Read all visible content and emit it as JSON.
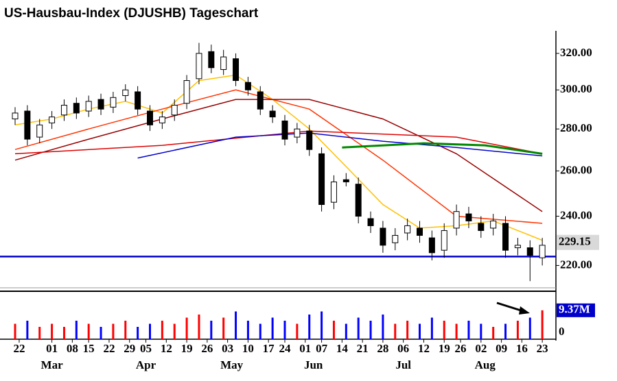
{
  "chart_data": {
    "type": "candlestick",
    "title": "US-Hausbau-Index (DJUSHB) Tageschart",
    "log_scale": true,
    "ylim": [
      212,
      333
    ],
    "yticks": [
      {
        "value": 220,
        "label": "220.00"
      },
      {
        "value": 240,
        "label": "240.00"
      },
      {
        "value": 260,
        "label": "260.00"
      },
      {
        "value": 280,
        "label": "280.00"
      },
      {
        "value": 300,
        "label": "300.00"
      },
      {
        "value": 320,
        "label": "320.00"
      }
    ],
    "xlim": [
      0,
      132
    ],
    "xticks": [
      {
        "value": 1,
        "label": "22"
      },
      {
        "value": 9,
        "label": "01"
      },
      {
        "value": 14,
        "label": "08"
      },
      {
        "value": 18,
        "label": "15"
      },
      {
        "value": 23,
        "label": "22"
      },
      {
        "value": 28,
        "label": "29"
      },
      {
        "value": 32,
        "label": "05"
      },
      {
        "value": 37,
        "label": "12"
      },
      {
        "value": 42,
        "label": "19"
      },
      {
        "value": 47,
        "label": "26"
      },
      {
        "value": 52,
        "label": "03"
      },
      {
        "value": 57,
        "label": "10"
      },
      {
        "value": 62,
        "label": "17"
      },
      {
        "value": 66,
        "label": "24"
      },
      {
        "value": 71,
        "label": "01"
      },
      {
        "value": 75,
        "label": "07"
      },
      {
        "value": 80,
        "label": "14"
      },
      {
        "value": 85,
        "label": "21"
      },
      {
        "value": 90,
        "label": "28"
      },
      {
        "value": 95,
        "label": "06"
      },
      {
        "value": 100,
        "label": "12"
      },
      {
        "value": 105,
        "label": "19"
      },
      {
        "value": 109,
        "label": "26"
      },
      {
        "value": 114,
        "label": "02"
      },
      {
        "value": 119,
        "label": "09"
      },
      {
        "value": 124,
        "label": "16"
      },
      {
        "value": 129,
        "label": "23"
      }
    ],
    "month_ticks": [
      {
        "value": 9,
        "label": "Mar"
      },
      {
        "value": 32,
        "label": "Apr"
      },
      {
        "value": 53,
        "label": "May"
      },
      {
        "value": 73,
        "label": "Jun"
      },
      {
        "value": 95,
        "label": "Jul"
      },
      {
        "value": 115,
        "label": "Aug"
      }
    ],
    "x": [
      0,
      3,
      6,
      9,
      12,
      15,
      18,
      21,
      24,
      27,
      30,
      33,
      36,
      39,
      42,
      45,
      48,
      51,
      54,
      57,
      60,
      63,
      66,
      69,
      72,
      75,
      78,
      81,
      84,
      87,
      90,
      93,
      96,
      99,
      102,
      105,
      108,
      111,
      114,
      117,
      120,
      123,
      126,
      129
    ],
    "open": [
      285,
      289,
      276,
      283,
      287,
      293,
      289,
      295,
      291,
      297,
      299,
      289,
      283,
      287,
      293,
      306,
      321,
      311,
      317,
      304,
      299,
      289,
      284,
      276,
      279,
      268,
      246,
      256,
      254,
      239,
      235,
      229,
      233,
      235,
      231,
      226,
      235,
      241,
      237,
      235,
      237,
      227,
      227,
      223
    ],
    "high": [
      291,
      292,
      285,
      289,
      295,
      296,
      297,
      298,
      299,
      303,
      302,
      292,
      289,
      295,
      308,
      326,
      325,
      322,
      320,
      307,
      302,
      292,
      287,
      283,
      282,
      271,
      258,
      259,
      257,
      242,
      238,
      235,
      239,
      238,
      234,
      237,
      245,
      244,
      240,
      241,
      240,
      231,
      230,
      231
    ],
    "low": [
      282,
      272,
      273,
      280,
      284,
      285,
      286,
      287,
      288,
      294,
      287,
      279,
      280,
      284,
      290,
      303,
      309,
      308,
      302,
      297,
      287,
      283,
      272,
      273,
      267,
      242,
      243,
      253,
      237,
      233,
      225,
      226,
      230,
      229,
      222,
      223,
      232,
      235,
      231,
      232,
      223,
      224,
      214,
      220
    ],
    "close": [
      288,
      275,
      282,
      286,
      292,
      288,
      294,
      290,
      296,
      300,
      290,
      282,
      286,
      292,
      305,
      320,
      312,
      318,
      305,
      300,
      290,
      286,
      275,
      280,
      270,
      245,
      255,
      255,
      240,
      236,
      228,
      232,
      236,
      232,
      225,
      234,
      242,
      238,
      234,
      238,
      226,
      228,
      224,
      228
    ],
    "up_color": "#ffffff",
    "down_color": "#000000",
    "wick_color": "#000000",
    "lines": [
      {
        "color": "#ffc000",
        "x": [
          0,
          9,
          18,
          27,
          36,
          45,
          54,
          63,
          72,
          81,
          90,
          99,
          108,
          117,
          126,
          129
        ],
        "values": [
          282,
          285,
          290,
          294,
          288,
          305,
          308,
          295,
          280,
          262,
          245,
          235,
          236,
          238,
          232,
          230
        ]
      },
      {
        "color": "#ff3300",
        "x": [
          0,
          18,
          36,
          54,
          72,
          90,
          108,
          129
        ],
        "values": [
          270,
          280,
          290,
          300,
          290,
          265,
          240,
          237
        ]
      },
      {
        "color": "#990000",
        "x": [
          0,
          18,
          36,
          54,
          72,
          90,
          108,
          129
        ],
        "values": [
          265,
          275,
          285,
          295,
          295,
          285,
          268,
          242
        ]
      },
      {
        "color": "#dd0000",
        "x": [
          0,
          36,
          72,
          108,
          129
        ],
        "values": [
          268,
          272,
          279,
          276,
          268
        ]
      },
      {
        "color": "#0000cc",
        "x": [
          30,
          54,
          72,
          90,
          108,
          129
        ],
        "values": [
          266,
          276,
          278,
          274,
          271,
          267
        ]
      },
      {
        "color": "#008800",
        "x": [
          80,
          100,
          115,
          129
        ],
        "values": [
          271,
          273,
          272,
          268
        ]
      }
    ],
    "hline": {
      "value": 223.5,
      "color": "#0000cc"
    },
    "last_price": 229.15,
    "volume": {
      "values": [
        5,
        6,
        4,
        5,
        4,
        6,
        5,
        4,
        5,
        6,
        4,
        5,
        6,
        5,
        7,
        8,
        6,
        7,
        9,
        6,
        5,
        7,
        6,
        5,
        8,
        9,
        6,
        5,
        7,
        6,
        8,
        5,
        6,
        5,
        7,
        6,
        5,
        6,
        5,
        4,
        5,
        6,
        7,
        9.37
      ],
      "ylim": [
        0,
        14
      ],
      "yticks": [
        0,
        {
          "value": 9.37,
          "label": "9.37M"
        }
      ],
      "up_color": "#ff0000",
      "down_color": "#0000ff"
    }
  }
}
